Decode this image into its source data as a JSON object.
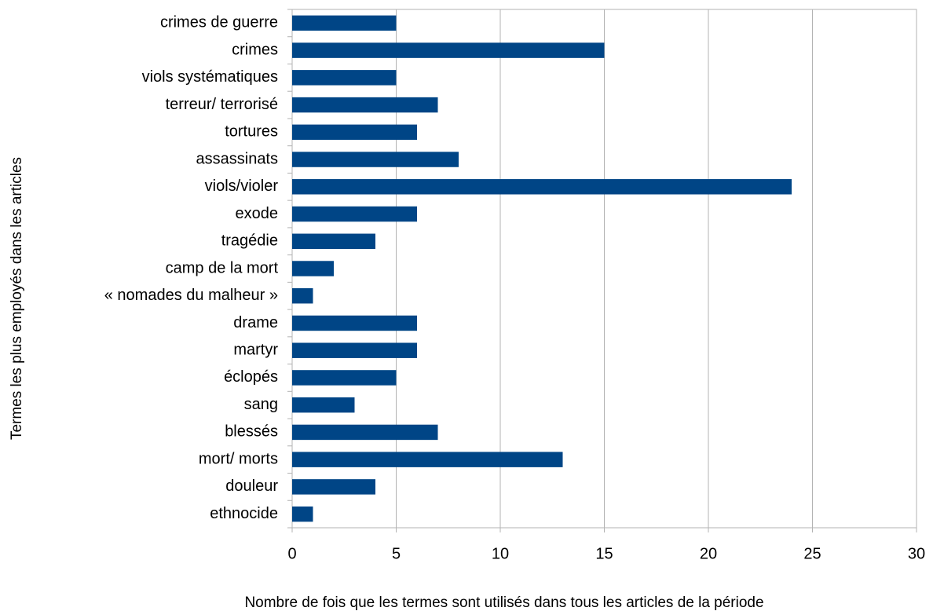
{
  "chart_data": {
    "type": "bar",
    "orientation": "horizontal",
    "xlabel": "Nombre de fois que les termes sont utilisés dans tous les articles de la période",
    "ylabel": "Termes les plus employés dans les articles",
    "categories": [
      "crimes de guerre",
      "crimes",
      "viols systématiques",
      "terreur/ terrorisé",
      "tortures",
      "assassinats",
      "viols/violer",
      "exode",
      "tragédie",
      "camp de la mort",
      "« nomades du malheur »",
      "drame",
      "martyr",
      "éclopés",
      "sang",
      "blessés",
      "mort/ morts",
      "douleur",
      "ethnocide"
    ],
    "values": [
      5,
      15,
      5,
      7,
      6,
      8,
      24,
      6,
      4,
      2,
      1,
      6,
      6,
      5,
      3,
      7,
      13,
      4,
      1
    ],
    "color": "#004586",
    "xlim": [
      0,
      30
    ],
    "xticks": [
      0,
      5,
      10,
      15,
      20,
      25,
      30
    ],
    "grid": true
  }
}
